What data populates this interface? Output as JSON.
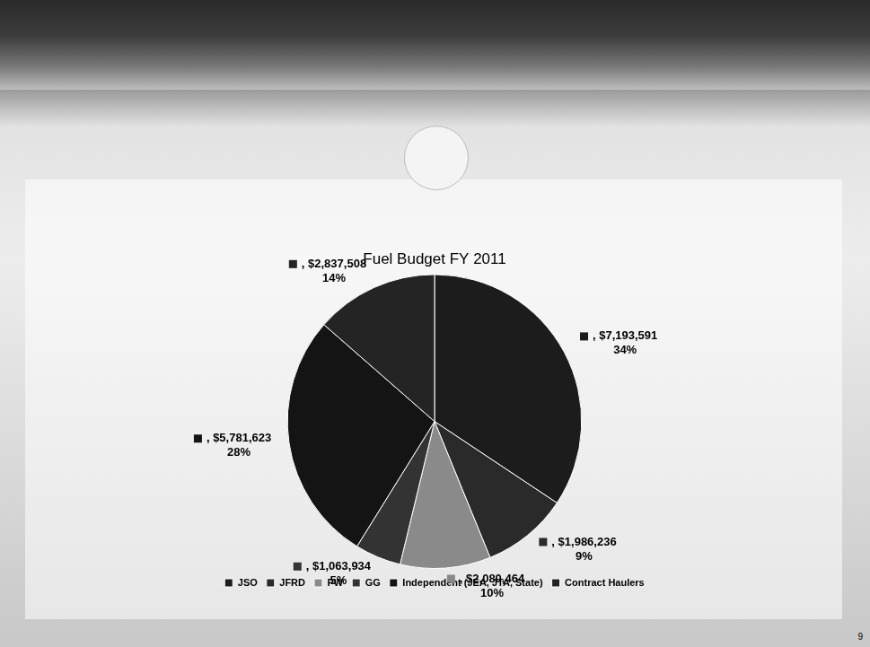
{
  "chart_data": {
    "type": "pie",
    "title": "Fuel Budget FY 2011",
    "categories": [
      "JSO",
      "JFRD",
      "PW",
      "GG",
      "Independent (JEA, JTA, State)",
      "Contract Haulers"
    ],
    "values": [
      7193591,
      1986236,
      2080464,
      1063934,
      5781623,
      2837508
    ],
    "value_labels": [
      [
        ", $7,193,591",
        "34%"
      ],
      [
        ", $1,986,236",
        "9%"
      ],
      [
        ", $2,080,464",
        "10%"
      ],
      [
        ", $1,063,934",
        "5%"
      ],
      [
        ", $5,781,623",
        "28%"
      ],
      [
        ", $2,837,508",
        "14%"
      ]
    ],
    "colors": [
      "#1c1c1c",
      "#2a2a2a",
      "#8a8a8a",
      "#333333",
      "#141414",
      "#242424"
    ],
    "legend": "bottom",
    "data_labels": true
  },
  "page_number": "9"
}
